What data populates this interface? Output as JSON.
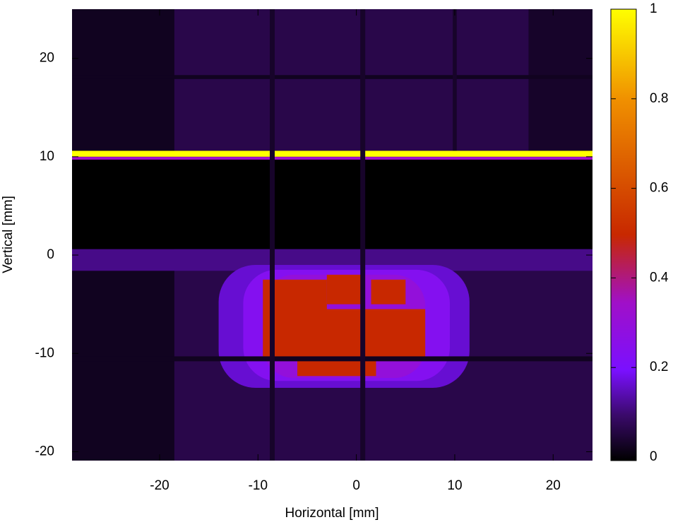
{
  "chart_data": {
    "type": "heatmap",
    "x_label": "Horizontal [mm]",
    "y_label": "Vertical [mm]",
    "xlim": [
      -28.9,
      24
    ],
    "xticks": [
      -20,
      -10,
      0,
      10,
      20
    ],
    "ylim": [
      -20.9,
      25
    ],
    "yticks": [
      -20,
      -10,
      0,
      10,
      20
    ],
    "zlim": [
      0,
      1
    ],
    "zticks": [
      0,
      0.2,
      0.4,
      0.6,
      0.8,
      1
    ],
    "colormap": [
      {
        "value": 0,
        "color": "#000000"
      },
      {
        "value": 0.1,
        "color": "#3a0a6a"
      },
      {
        "value": 0.2,
        "color": "#7a10ff"
      },
      {
        "value": 0.35,
        "color": "#a010c8"
      },
      {
        "value": 0.5,
        "color": "#c82800"
      },
      {
        "value": 0.8,
        "color": "#f09000"
      },
      {
        "value": 1,
        "color": "#ffff00"
      }
    ],
    "cells": [
      {
        "x": [
          -28.9,
          24
        ],
        "y": [
          -20.9,
          25
        ],
        "value": 0.07
      },
      {
        "x": [
          -28.9,
          -18.5
        ],
        "y": [
          -20.9,
          25
        ],
        "value": 0.03
      },
      {
        "x": [
          17.5,
          24
        ],
        "y": [
          10.5,
          25
        ],
        "value": 0.04
      },
      {
        "x": [
          -28.9,
          24
        ],
        "y": [
          0.6,
          9.8
        ],
        "value": 0
      },
      {
        "x": [
          -28.9,
          24
        ],
        "y": [
          9.7,
          10.0
        ],
        "value": 0.35
      },
      {
        "x": [
          -28.9,
          24
        ],
        "y": [
          10.0,
          10.6
        ],
        "value": 1
      },
      {
        "x": [
          -28.9,
          24
        ],
        "y": [
          17.9,
          18.3
        ],
        "value": 0.03
      },
      {
        "x": [
          -28.9,
          24
        ],
        "y": [
          -1.6,
          0.6
        ],
        "value": 0.12
      },
      {
        "x": [
          -14,
          11.5
        ],
        "y": [
          -13.5,
          -1
        ],
        "value": 0.17
      },
      {
        "x": [
          -11.5,
          9.5
        ],
        "y": [
          -12.8,
          -1.5
        ],
        "value": 0.24
      },
      {
        "x": [
          -9.5,
          7
        ],
        "y": [
          -12.5,
          -2
        ],
        "value": 0.3
      },
      {
        "x": [
          -8,
          7
        ],
        "y": [
          -10.4,
          -5.5
        ],
        "value": 0.5
      },
      {
        "x": [
          -9.5,
          -3
        ],
        "y": [
          -10.4,
          -2.5
        ],
        "value": 0.5
      },
      {
        "x": [
          -3,
          0.5
        ],
        "y": [
          -5,
          -2
        ],
        "value": 0.5
      },
      {
        "x": [
          1.5,
          5
        ],
        "y": [
          -5,
          -2.5
        ],
        "value": 0.5
      },
      {
        "x": [
          -6,
          2
        ],
        "y": [
          -12.3,
          -10.7
        ],
        "value": 0.5
      },
      {
        "x": [
          -28.9,
          24
        ],
        "y": [
          -10.8,
          -10.3
        ],
        "value": 0.03
      },
      {
        "x": [
          -8.8,
          -8.3
        ],
        "y": [
          -20.9,
          25
        ],
        "value": 0.04
      },
      {
        "x": [
          0.4,
          0.9
        ],
        "y": [
          -20.9,
          25
        ],
        "value": 0.04
      },
      {
        "x": [
          9.8,
          10.2
        ],
        "y": [
          10.6,
          25
        ],
        "value": 0.04
      }
    ]
  }
}
